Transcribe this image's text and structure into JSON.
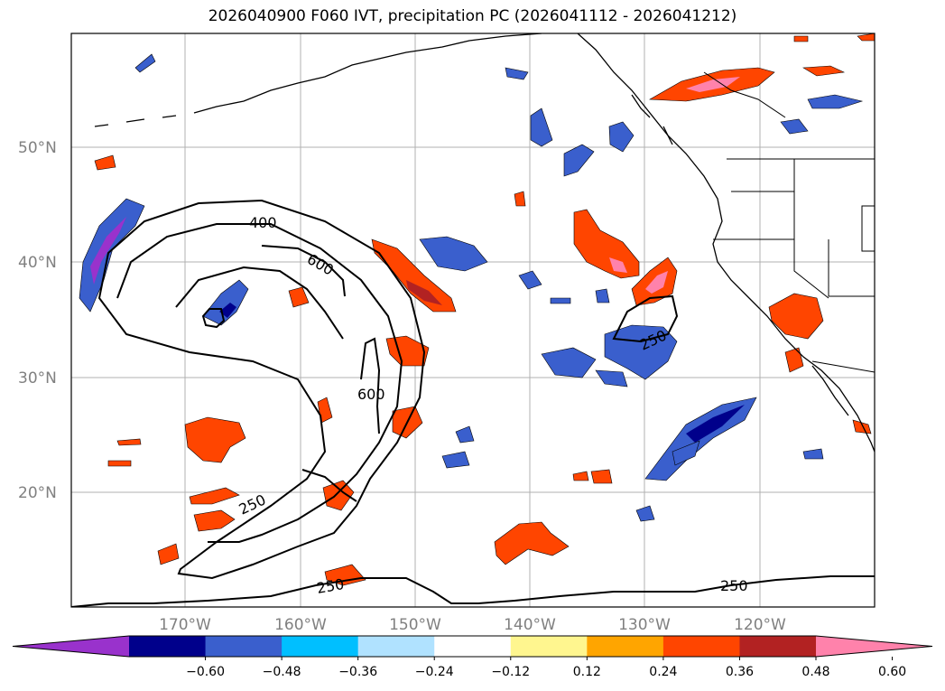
{
  "title": "2026040900 F060 IVT, precipitation PC (2026041112 - 2026041212)",
  "lat_labels": [
    "50°N",
    "40°N",
    "30°N",
    "20°N"
  ],
  "lon_labels": [
    "170°W",
    "160°W",
    "150°W",
    "140°W",
    "130°W",
    "120°W"
  ],
  "contour_labels": [
    "400",
    "600",
    "600",
    "250",
    "250",
    "250",
    "250"
  ],
  "colorbar": {
    "ticks": [
      "−0.60",
      "−0.48",
      "−0.36",
      "−0.24",
      "−0.12",
      "0.12",
      "0.24",
      "0.36",
      "0.48",
      "0.60"
    ],
    "colors": [
      "#9932cc",
      "#00008b",
      "#3a5fcd",
      "#00bfff",
      "#b0e2ff",
      "#ffffff",
      "#fff68f",
      "#ffa500",
      "#ff4500",
      "#b22222",
      "#ff82ab"
    ]
  },
  "colors": {
    "coast": "#000000",
    "grid": "#b0b0b0",
    "contour": "#000000",
    "positive_fill": "#ff4500",
    "negative_fill": "#3a5fcd"
  }
}
